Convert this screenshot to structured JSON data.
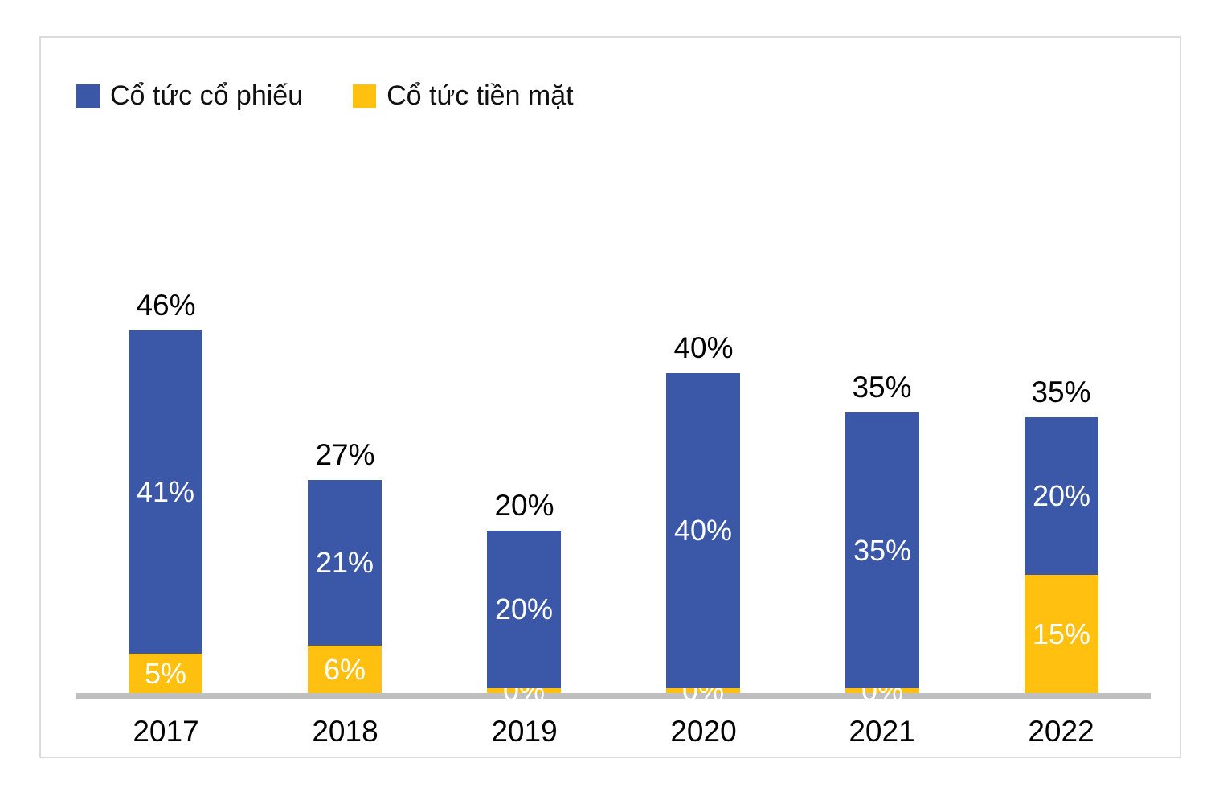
{
  "chart_data": {
    "type": "bar",
    "stacked": true,
    "title": "",
    "categories": [
      "2017",
      "2018",
      "2019",
      "2020",
      "2021",
      "2022"
    ],
    "series": [
      {
        "name": "Cổ tức cổ phiếu",
        "color": "#3A57A8",
        "values": [
          41,
          21,
          20,
          40,
          35,
          20
        ]
      },
      {
        "name": "Cổ tức tiền mặt",
        "color": "#FFC010",
        "values": [
          5,
          6,
          0,
          0,
          0,
          15
        ]
      }
    ],
    "totals": [
      46,
      27,
      20,
      40,
      35,
      35
    ],
    "value_unit": "%",
    "value_label_format": "percent",
    "segment_label_color": "#FFFFFF",
    "total_label_color": "#000000",
    "legend_position": "top-left",
    "grid": "off",
    "x_axis_line_color": "#BFBFBF",
    "panel_border_color": "#DBDBDB",
    "background_color": "#FFFFFF",
    "ylim": [
      0,
      50
    ]
  }
}
